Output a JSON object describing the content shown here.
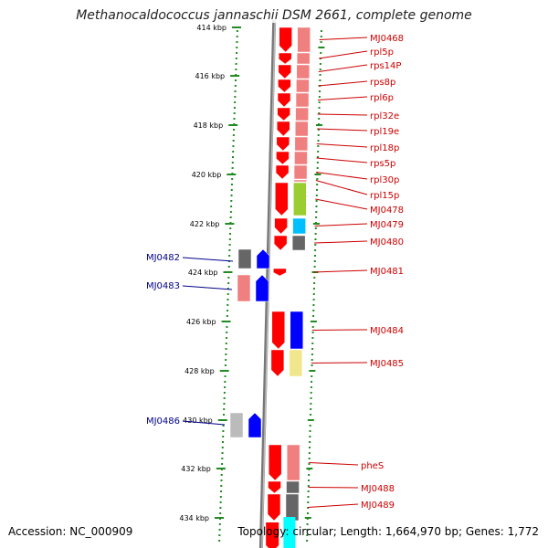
{
  "title": "Methanocaldococcus jannaschii DSM 2661, complete genome",
  "accession": "Accession: NC_000909",
  "topology": "Topology: circular; Length: 1,664,970 bp; Genes: 1,772",
  "colors": {
    "forward_label": "#cc0000",
    "reverse_label": "#00008b",
    "cds_forward": "#ff0000",
    "cds_reverse": "#0000ff",
    "axis_dots": "#228b22",
    "backbone": "#888888"
  },
  "scale": {
    "ticks": [
      {
        "label": "414 kbp"
      },
      {
        "label": "416 kbp"
      },
      {
        "label": "418 kbp"
      },
      {
        "label": "420 kbp"
      },
      {
        "label": "422 kbp"
      },
      {
        "label": "424 kbp"
      },
      {
        "label": "426 kbp"
      },
      {
        "label": "428 kbp"
      },
      {
        "label": "430 kbp"
      },
      {
        "label": "432 kbp"
      },
      {
        "label": "434 kbp"
      }
    ]
  },
  "forward_genes": [
    {
      "label": "MJ0468",
      "category_color": "#f08080"
    },
    {
      "label": "rpl5p",
      "category_color": "#f08080"
    },
    {
      "label": "rps14P",
      "category_color": "#f08080"
    },
    {
      "label": "rps8p",
      "category_color": "#f08080"
    },
    {
      "label": "rpl6p",
      "category_color": "#f08080"
    },
    {
      "label": "rpl32e",
      "category_color": "#f08080"
    },
    {
      "label": "rpl19e",
      "category_color": "#f08080"
    },
    {
      "label": "rpl18p",
      "category_color": "#f08080"
    },
    {
      "label": "rps5p",
      "category_color": "#f08080"
    },
    {
      "label": "rpl30p",
      "category_color": "#f08080"
    },
    {
      "label": "rpl15p",
      "category_color": "#f08080"
    },
    {
      "label": "MJ0478",
      "category_color": "#9acd32"
    },
    {
      "label": "MJ0479",
      "category_color": "#00bfff"
    },
    {
      "label": "MJ0480",
      "category_color": "#666666"
    },
    {
      "label": "MJ0481",
      "category_color": ""
    },
    {
      "label": "MJ0484",
      "category_color": "#0000ff"
    },
    {
      "label": "MJ0485",
      "category_color": "#f0e68c"
    },
    {
      "label": "pheS",
      "category_color": "#f08080"
    },
    {
      "label": "MJ0488",
      "category_color": "#666666"
    },
    {
      "label": "MJ0489",
      "category_color": "#666666"
    }
  ],
  "reverse_genes": [
    {
      "label": "MJ0482",
      "category_color": "#666666"
    },
    {
      "label": "MJ0483",
      "category_color": "#f08080"
    },
    {
      "label": "MJ0486",
      "category_color": "#bbbbbb"
    }
  ]
}
